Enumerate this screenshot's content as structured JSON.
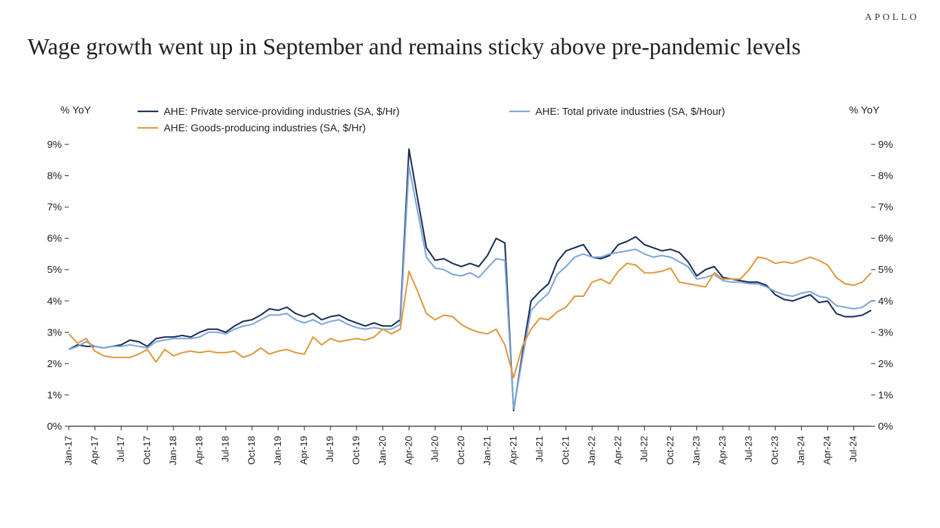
{
  "brand": "APOLLO",
  "title": "Wage growth went up in September and remains sticky above pre-pandemic levels",
  "chart": {
    "type": "line",
    "y_axis_label_left": "% YoY",
    "y_axis_label_right": "% YoY",
    "ylim": [
      0,
      9
    ],
    "ytick_step": 1,
    "ytick_suffix": "%",
    "background_color": "#ffffff",
    "axis_color": "#222222",
    "tick_font_size": 15,
    "label_font_size": 15,
    "line_width": 2.2,
    "x_labels": [
      "Jan-17",
      "Apr-17",
      "Jul-17",
      "Oct-17",
      "Jan-18",
      "Apr-18",
      "Jul-18",
      "Oct-18",
      "Jan-19",
      "Apr-19",
      "Jul-19",
      "Oct-19",
      "Jan-20",
      "Apr-20",
      "Jul-20",
      "Oct-20",
      "Jan-21",
      "Apr-21",
      "Jul-21",
      "Oct-21",
      "Jan-22",
      "Apr-22",
      "Jul-22",
      "Oct-22",
      "Jan-23",
      "Apr-23",
      "Jul-23",
      "Oct-23",
      "Jan-24",
      "Apr-24",
      "Jul-24"
    ],
    "x_label_interval": 3,
    "n_points": 93,
    "legend": {
      "items": [
        {
          "label": "AHE: Private service-providing industries (SA, $/Hr)",
          "color": "#1f2f57"
        },
        {
          "label": "AHE: Total private industries (SA, $/Hour)",
          "color": "#7ea6d9"
        },
        {
          "label": "AHE: Goods-producing industries (SA, $/Hr)",
          "color": "#e09a3f"
        }
      ],
      "swatch_width": 30,
      "font_size": 15
    },
    "series": [
      {
        "name": "AHE: Private service-providing industries (SA, $/Hr)",
        "color": "#1f2f57",
        "data": [
          2.45,
          2.6,
          2.55,
          2.55,
          2.5,
          2.55,
          2.6,
          2.75,
          2.7,
          2.55,
          2.8,
          2.85,
          2.85,
          2.9,
          2.85,
          3.0,
          3.1,
          3.1,
          3.0,
          3.2,
          3.35,
          3.4,
          3.55,
          3.75,
          3.7,
          3.8,
          3.6,
          3.5,
          3.6,
          3.4,
          3.5,
          3.55,
          3.4,
          3.3,
          3.2,
          3.3,
          3.2,
          3.2,
          3.4,
          8.85,
          7.25,
          5.7,
          5.3,
          5.35,
          5.2,
          5.1,
          5.2,
          5.1,
          5.45,
          6.0,
          5.85,
          0.5,
          2.3,
          4.0,
          4.3,
          4.55,
          5.25,
          5.6,
          5.7,
          5.8,
          5.4,
          5.35,
          5.45,
          5.8,
          5.9,
          6.05,
          5.8,
          5.7,
          5.6,
          5.65,
          5.55,
          5.25,
          4.8,
          5.0,
          5.1,
          4.75,
          4.7,
          4.65,
          4.6,
          4.6,
          4.5,
          4.2,
          4.05,
          4.0,
          4.1,
          4.2,
          3.95,
          4.0,
          3.6,
          3.5,
          3.5,
          3.55,
          3.7
        ]
      },
      {
        "name": "AHE: Total private industries (SA, $/Hour)",
        "color": "#7ea6d9",
        "data": [
          2.45,
          2.55,
          2.7,
          2.55,
          2.5,
          2.55,
          2.55,
          2.6,
          2.55,
          2.5,
          2.7,
          2.75,
          2.8,
          2.8,
          2.8,
          2.85,
          3.0,
          3.0,
          2.95,
          3.1,
          3.2,
          3.25,
          3.4,
          3.55,
          3.55,
          3.6,
          3.4,
          3.3,
          3.4,
          3.25,
          3.35,
          3.4,
          3.25,
          3.15,
          3.1,
          3.15,
          3.1,
          3.1,
          3.25,
          8.3,
          6.85,
          5.4,
          5.05,
          5.0,
          4.85,
          4.8,
          4.9,
          4.75,
          5.05,
          5.35,
          5.3,
          0.55,
          2.15,
          3.7,
          4.0,
          4.25,
          4.85,
          5.1,
          5.4,
          5.5,
          5.4,
          5.4,
          5.5,
          5.55,
          5.6,
          5.65,
          5.5,
          5.4,
          5.45,
          5.4,
          5.25,
          5.1,
          4.7,
          4.75,
          4.85,
          4.65,
          4.6,
          4.6,
          4.55,
          4.55,
          4.45,
          4.3,
          4.2,
          4.15,
          4.25,
          4.3,
          4.15,
          4.1,
          3.85,
          3.8,
          3.75,
          3.8,
          4.0
        ]
      },
      {
        "name": "AHE: Goods-producing industries (SA, $/Hr)",
        "color": "#e09a3f",
        "data": [
          2.95,
          2.65,
          2.8,
          2.4,
          2.25,
          2.2,
          2.2,
          2.2,
          2.3,
          2.45,
          2.05,
          2.45,
          2.25,
          2.35,
          2.4,
          2.35,
          2.4,
          2.35,
          2.35,
          2.4,
          2.2,
          2.3,
          2.5,
          2.3,
          2.4,
          2.45,
          2.35,
          2.3,
          2.85,
          2.6,
          2.8,
          2.7,
          2.75,
          2.8,
          2.75,
          2.85,
          3.1,
          2.95,
          3.1,
          4.95,
          4.3,
          3.6,
          3.4,
          3.55,
          3.5,
          3.25,
          3.1,
          3.0,
          2.95,
          3.1,
          2.6,
          1.55,
          2.55,
          3.1,
          3.45,
          3.4,
          3.65,
          3.8,
          4.15,
          4.15,
          4.6,
          4.7,
          4.55,
          4.95,
          5.2,
          5.15,
          4.9,
          4.9,
          4.95,
          5.05,
          4.6,
          4.55,
          4.5,
          4.45,
          4.9,
          4.7,
          4.7,
          4.7,
          5.0,
          5.4,
          5.35,
          5.2,
          5.25,
          5.2,
          5.3,
          5.4,
          5.3,
          5.15,
          4.75,
          4.55,
          4.5,
          4.6,
          4.9
        ]
      }
    ]
  }
}
